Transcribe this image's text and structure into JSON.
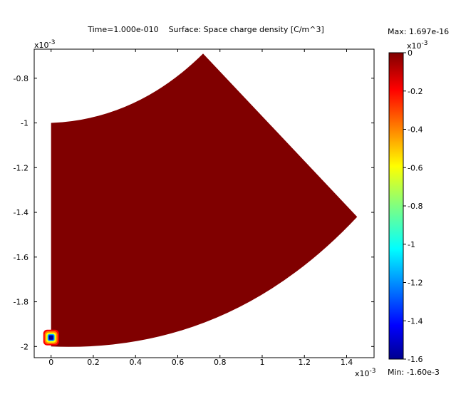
{
  "chart_data": {
    "type": "heatmap",
    "title": "Time=1.000e-010    Surface: Space charge density [C/m^3]",
    "x_axis": {
      "range": [
        -0.08,
        1.53
      ],
      "ticks": [
        0,
        0.2,
        0.4,
        0.6,
        0.8,
        1,
        1.2,
        1.4
      ],
      "tick_labels": [
        "0",
        "0.2",
        "0.4",
        "0.6",
        "0.8",
        "1",
        "1.2",
        "1.4"
      ],
      "scale_base": "x10",
      "scale_exp": "-3"
    },
    "y_axis": {
      "range": [
        -2.05,
        -0.67
      ],
      "ticks": [
        -0.8,
        -1,
        -1.2,
        -1.4,
        -1.6,
        -1.8,
        -2
      ],
      "tick_labels": [
        "-0.8",
        "-1",
        "-1.2",
        "-1.4",
        "-1.6",
        "-1.8",
        "-2"
      ],
      "scale_base": "x10",
      "scale_exp": "-3"
    },
    "domain_shape": {
      "description": "annular sector between two arcs",
      "vertices": [
        [
          0,
          -1.0
        ],
        [
          0.72,
          -0.69
        ],
        [
          1.45,
          -1.42
        ],
        [
          0,
          -2.0
        ]
      ],
      "surface_value": 0,
      "surface_color": "#800000"
    },
    "hotspot": {
      "center": [
        0,
        -1.96
      ],
      "min_value": -1.6,
      "colors": [
        "#00008f",
        "#0050ff",
        "#00c8ff",
        "#ffff00",
        "#ff8000",
        "#ff0000"
      ]
    },
    "colorbar": {
      "min": -1.6,
      "max": 0,
      "ticks": [
        0,
        -0.2,
        -0.4,
        -0.6,
        -0.8,
        -1,
        -1.2,
        -1.4,
        -1.6
      ],
      "tick_labels": [
        "0",
        "-0.2",
        "-0.4",
        "-0.6",
        "-0.8",
        "-1",
        "-1.2",
        "-1.4",
        "-1.6"
      ],
      "scale_base": "x10",
      "scale_exp": "-3",
      "colormap": "jet"
    },
    "max_label": "Max: 1.697e-16",
    "min_label": "Min: -1.60e-3"
  }
}
